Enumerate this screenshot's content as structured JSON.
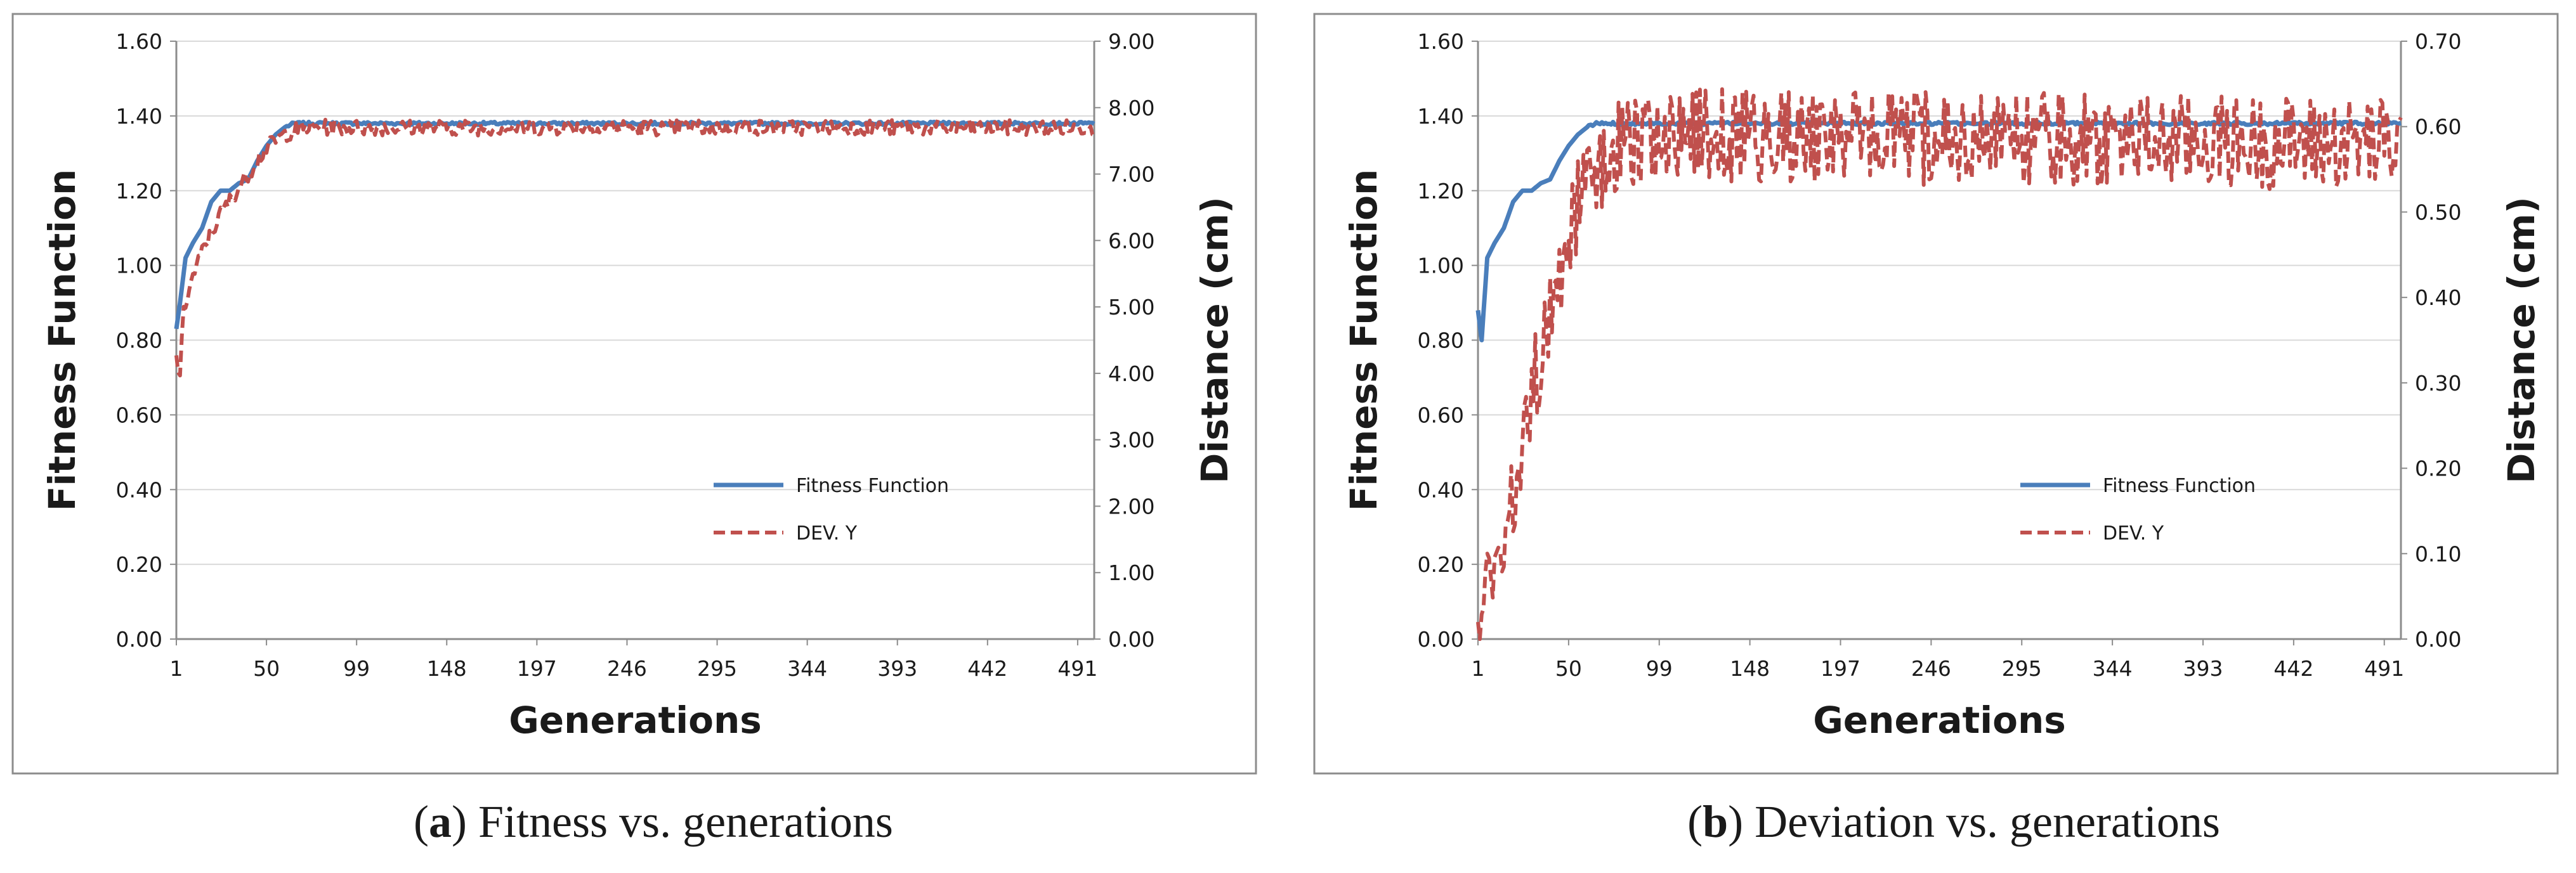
{
  "colors": {
    "fitness": "#4a7ebb",
    "dev": "#c0504d",
    "grid": "#d9d9d9",
    "frame": "#8c8c8c",
    "text": "#1a1a1a"
  },
  "chart_data": [
    {
      "id": "a",
      "type": "line",
      "caption_letter": "a",
      "caption_text": "Fitness vs. generations",
      "xlabel": "Generations",
      "ylabel": "Fitness Function",
      "y2label": "Distance  (cm)",
      "x_ticks": [
        "1",
        "50",
        "99",
        "148",
        "197",
        "246",
        "295",
        "344",
        "393",
        "442",
        "491"
      ],
      "xlim": [
        1,
        500
      ],
      "ylim": [
        0,
        1.6
      ],
      "y_ticks": [
        "0.00",
        "0.20",
        "0.40",
        "0.60",
        "0.80",
        "1.00",
        "1.20",
        "1.40",
        "1.60"
      ],
      "y2lim": [
        0,
        9
      ],
      "y2_ticks": [
        "0.00",
        "1.00",
        "2.00",
        "3.00",
        "4.00",
        "5.00",
        "6.00",
        "7.00",
        "8.00",
        "9.00"
      ],
      "legend_position": "bottom-right",
      "series": [
        {
          "name": "Fitness Function",
          "axis": "left",
          "style": "solid",
          "x": [
            1,
            3,
            6,
            10,
            15,
            20,
            25,
            30,
            35,
            40,
            45,
            50,
            55,
            60,
            65,
            70,
            80,
            100,
            150,
            200,
            250,
            300,
            350,
            400,
            450,
            500
          ],
          "values": [
            0.83,
            0.9,
            1.02,
            1.06,
            1.1,
            1.17,
            1.2,
            1.2,
            1.22,
            1.23,
            1.28,
            1.32,
            1.35,
            1.37,
            1.38,
            1.38,
            1.38,
            1.38,
            1.38,
            1.38,
            1.38,
            1.38,
            1.38,
            1.38,
            1.38,
            1.38
          ]
        },
        {
          "name": "DEV. Y",
          "axis": "right",
          "style": "dashed",
          "x": [
            1,
            3,
            5,
            8,
            12,
            16,
            20,
            25,
            30,
            35,
            40,
            45,
            50,
            55,
            60,
            65,
            70,
            80,
            90,
            100,
            500
          ],
          "values": [
            4.2,
            4.0,
            4.9,
            5.3,
            5.6,
            5.9,
            6.1,
            6.4,
            6.6,
            6.8,
            7.0,
            7.2,
            7.4,
            7.5,
            7.6,
            7.65,
            7.7,
            7.7,
            7.7,
            7.7,
            7.7
          ],
          "noise": 0.12
        }
      ]
    },
    {
      "id": "b",
      "type": "line",
      "caption_letter": "b",
      "caption_text": "Deviation vs. generations",
      "xlabel": "Generations",
      "ylabel": "Fitness Function",
      "y2label": "Distance  (cm)",
      "x_ticks": [
        "1",
        "50",
        "99",
        "148",
        "197",
        "246",
        "295",
        "344",
        "393",
        "442",
        "491"
      ],
      "xlim": [
        1,
        500
      ],
      "ylim": [
        0,
        1.6
      ],
      "y_ticks": [
        "0.00",
        "0.20",
        "0.40",
        "0.60",
        "0.80",
        "1.00",
        "1.20",
        "1.40",
        "1.60"
      ],
      "y2lim": [
        0,
        0.7
      ],
      "y2_ticks": [
        "0.00",
        "0.10",
        "0.20",
        "0.30",
        "0.40",
        "0.50",
        "0.60",
        "0.70"
      ],
      "legend_position": "bottom-right",
      "series": [
        {
          "name": "Fitness Function",
          "axis": "left",
          "style": "solid",
          "x": [
            1,
            3,
            6,
            10,
            15,
            20,
            25,
            30,
            35,
            40,
            45,
            50,
            55,
            60,
            65,
            70,
            80,
            100,
            150,
            200,
            250,
            300,
            350,
            400,
            450,
            500
          ],
          "values": [
            0.88,
            0.8,
            1.02,
            1.06,
            1.1,
            1.17,
            1.2,
            1.2,
            1.22,
            1.23,
            1.28,
            1.32,
            1.35,
            1.37,
            1.38,
            1.38,
            1.38,
            1.38,
            1.38,
            1.38,
            1.38,
            1.38,
            1.38,
            1.38,
            1.38,
            1.38
          ]
        },
        {
          "name": "DEV. Y",
          "axis": "right",
          "style": "dashed",
          "x": [
            1,
            4,
            8,
            12,
            16,
            20,
            25,
            30,
            35,
            40,
            45,
            50,
            55,
            60,
            70,
            80,
            90,
            100,
            500
          ],
          "values": [
            0.0,
            0.04,
            0.08,
            0.11,
            0.13,
            0.16,
            0.22,
            0.29,
            0.33,
            0.38,
            0.43,
            0.47,
            0.51,
            0.53,
            0.56,
            0.58,
            0.59,
            0.59,
            0.58
          ],
          "noise": 0.055
        }
      ]
    }
  ]
}
